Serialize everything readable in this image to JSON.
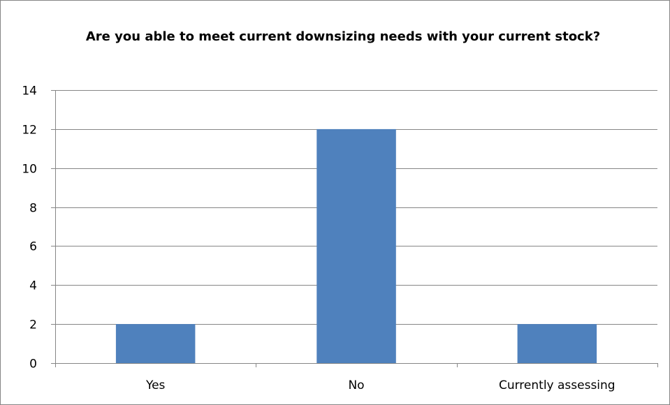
{
  "chart_data": {
    "type": "bar",
    "title": "Are you able to meet current downsizing needs with your current stock?",
    "categories": [
      "Yes",
      "No",
      "Currently assessing"
    ],
    "values": [
      2,
      12,
      2
    ],
    "xlabel": "",
    "ylabel": "",
    "ylim": [
      0,
      14
    ],
    "yticks": [
      0,
      2,
      4,
      6,
      8,
      10,
      12,
      14
    ],
    "grid": true,
    "legend": "none",
    "bar_color": "#4f81bd",
    "grid_color": "#868686"
  }
}
